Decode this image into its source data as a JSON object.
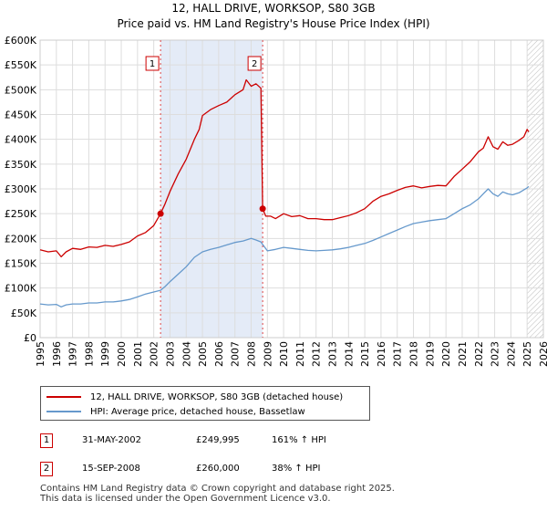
{
  "title_line1": "12, HALL DRIVE, WORKSOP, S80 3GB",
  "title_line2": "Price paid vs. HM Land Registry's House Price Index (HPI)",
  "colors": {
    "property": "#cc0000",
    "hpi": "#6699cc",
    "shade": "#dde6f5",
    "event_line": "#dd4444"
  },
  "chart_data": {
    "type": "line",
    "title": "12, HALL DRIVE, WORKSOP, S80 3GB — Price paid vs. HM Land Registry's House Price Index (HPI)",
    "xlim": [
      1995,
      2026
    ],
    "ylim": [
      0,
      600000
    ],
    "xticks": [
      "1995",
      "1996",
      "1997",
      "1998",
      "1999",
      "2000",
      "2001",
      "2002",
      "2003",
      "2004",
      "2005",
      "2006",
      "2007",
      "2008",
      "2009",
      "2010",
      "2011",
      "2012",
      "2013",
      "2014",
      "2015",
      "2016",
      "2017",
      "2018",
      "2019",
      "2020",
      "2021",
      "2022",
      "2023",
      "2024",
      "2025",
      "2026"
    ],
    "yticks": [
      {
        "value": 0,
        "label": "£0"
      },
      {
        "value": 50000,
        "label": "£50K"
      },
      {
        "value": 100000,
        "label": "£100K"
      },
      {
        "value": 150000,
        "label": "£150K"
      },
      {
        "value": 200000,
        "label": "£200K"
      },
      {
        "value": 250000,
        "label": "£250K"
      },
      {
        "value": 300000,
        "label": "£300K"
      },
      {
        "value": 350000,
        "label": "£350K"
      },
      {
        "value": 400000,
        "label": "£400K"
      },
      {
        "value": 450000,
        "label": "£450K"
      },
      {
        "value": 500000,
        "label": "£500K"
      },
      {
        "value": 550000,
        "label": "£550K"
      },
      {
        "value": 600000,
        "label": "£600K"
      }
    ],
    "shaded_region": [
      2002.42,
      2008.71
    ],
    "hatched_region": [
      2025.0,
      2026.0
    ],
    "series": [
      {
        "name": "12, HALL DRIVE, WORKSOP, S80 3GB (detached house)",
        "color": "#cc0000",
        "x": [
          1995.0,
          1995.5,
          1996.0,
          1996.3,
          1996.6,
          1997.0,
          1997.5,
          1998.0,
          1998.5,
          1999.0,
          1999.5,
          2000.0,
          2000.5,
          2001.0,
          2001.5,
          2002.0,
          2002.42,
          2002.7,
          2003.0,
          2003.5,
          2004.0,
          2004.5,
          2004.8,
          2005.0,
          2005.5,
          2006.0,
          2006.5,
          2007.0,
          2007.5,
          2007.7,
          2008.0,
          2008.3,
          2008.6,
          2008.71,
          2008.9,
          2009.2,
          2009.5,
          2010.0,
          2010.5,
          2011.0,
          2011.5,
          2012.0,
          2012.5,
          2013.0,
          2013.5,
          2014.0,
          2014.5,
          2015.0,
          2015.5,
          2016.0,
          2016.5,
          2017.0,
          2017.5,
          2018.0,
          2018.5,
          2019.0,
          2019.5,
          2020.0,
          2020.5,
          2021.0,
          2021.5,
          2022.0,
          2022.3,
          2022.6,
          2022.9,
          2023.2,
          2023.5,
          2023.8,
          2024.1,
          2024.5,
          2024.8,
          2025.0,
          2025.1
        ],
        "values": [
          177000,
          173000,
          175000,
          163000,
          173000,
          180000,
          178000,
          183000,
          182000,
          186000,
          184000,
          188000,
          193000,
          205000,
          212000,
          226000,
          249995,
          270000,
          295000,
          330000,
          360000,
          400000,
          420000,
          448000,
          460000,
          468000,
          475000,
          490000,
          500000,
          520000,
          507000,
          512000,
          503000,
          260000,
          245000,
          245000,
          240000,
          250000,
          244000,
          246000,
          240000,
          240000,
          238000,
          238000,
          242000,
          246000,
          252000,
          260000,
          275000,
          285000,
          290000,
          297000,
          303000,
          306000,
          302000,
          305000,
          307000,
          306000,
          325000,
          340000,
          355000,
          375000,
          382000,
          405000,
          385000,
          380000,
          395000,
          388000,
          390000,
          398000,
          405000,
          420000,
          415000
        ]
      },
      {
        "name": "HPI: Average price, detached house, Bassetlaw",
        "color": "#6699cc",
        "x": [
          1995.0,
          1995.5,
          1996.0,
          1996.3,
          1996.6,
          1997.0,
          1997.5,
          1998.0,
          1998.5,
          1999.0,
          1999.5,
          2000.0,
          2000.5,
          2001.0,
          2001.5,
          2002.0,
          2002.42,
          2002.7,
          2003.0,
          2003.5,
          2004.0,
          2004.5,
          2005.0,
          2005.5,
          2006.0,
          2006.5,
          2007.0,
          2007.5,
          2008.0,
          2008.3,
          2008.6,
          2008.71,
          2009.0,
          2009.5,
          2010.0,
          2010.5,
          2011.0,
          2011.5,
          2012.0,
          2012.5,
          2013.0,
          2013.5,
          2014.0,
          2014.5,
          2015.0,
          2015.5,
          2016.0,
          2016.5,
          2017.0,
          2017.5,
          2018.0,
          2018.5,
          2019.0,
          2019.5,
          2020.0,
          2020.5,
          2021.0,
          2021.5,
          2022.0,
          2022.3,
          2022.6,
          2022.9,
          2023.2,
          2023.5,
          2023.8,
          2024.1,
          2024.5,
          2024.8,
          2025.0,
          2025.1
        ],
        "values": [
          68000,
          66000,
          67000,
          62000,
          66000,
          68000,
          68000,
          70000,
          70000,
          72000,
          72000,
          74000,
          77000,
          82000,
          88000,
          92000,
          95500,
          103000,
          113000,
          128000,
          143000,
          162000,
          173000,
          178000,
          182000,
          187000,
          192000,
          195000,
          200000,
          197000,
          193000,
          188000,
          175000,
          178000,
          182000,
          180000,
          178000,
          176000,
          175000,
          176000,
          177000,
          179000,
          182000,
          186000,
          190000,
          196000,
          203000,
          210000,
          217000,
          224000,
          230000,
          233000,
          236000,
          238000,
          240000,
          250000,
          260000,
          268000,
          280000,
          290000,
          300000,
          290000,
          285000,
          294000,
          290000,
          288000,
          292000,
          298000,
          302000,
          305000
        ]
      }
    ],
    "events": [
      {
        "id": "1",
        "x": 2002.42,
        "y": 249995
      },
      {
        "id": "2",
        "x": 2008.71,
        "y": 260000
      }
    ]
  },
  "legend": {
    "items": [
      {
        "label": "12, HALL DRIVE, WORKSOP, S80 3GB (detached house)",
        "color": "#cc0000"
      },
      {
        "label": "HPI: Average price, detached house, Bassetlaw",
        "color": "#6699cc"
      }
    ]
  },
  "events_table": [
    {
      "num": "1",
      "date": "31-MAY-2002",
      "price": "£249,995",
      "hpi": "161% ↑ HPI"
    },
    {
      "num": "2",
      "date": "15-SEP-2008",
      "price": "£260,000",
      "hpi": "38% ↑ HPI"
    }
  ],
  "footer": {
    "line1": "Contains HM Land Registry data © Crown copyright and database right 2025.",
    "line2": "This data is licensed under the Open Government Licence v3.0."
  }
}
